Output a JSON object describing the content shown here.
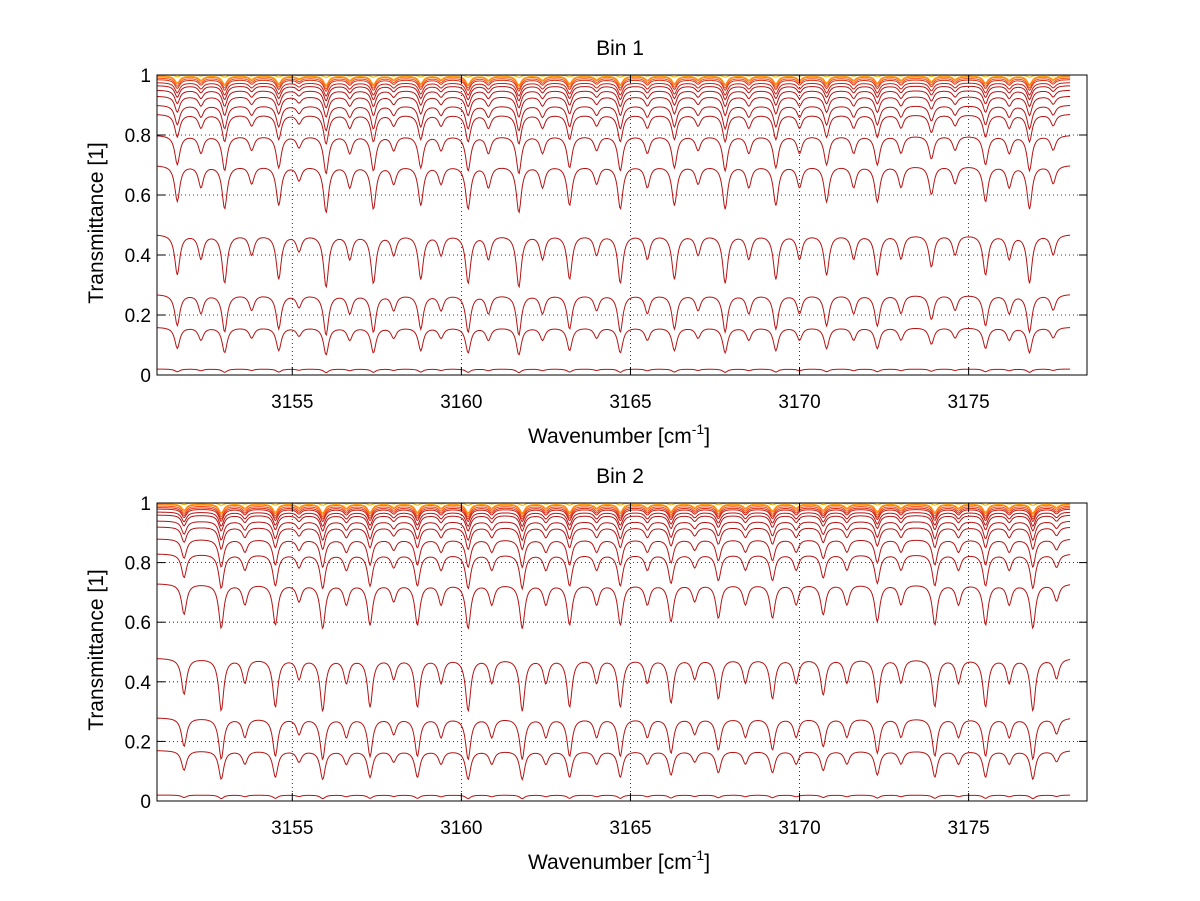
{
  "chart_data": [
    {
      "type": "line",
      "title": "Bin 1",
      "xlabel": "Wavenumber [cm",
      "xlabel_superscript": "-1",
      "xlabel_suffix": "]",
      "ylabel": "Transmittance [1]",
      "xlim": [
        3151,
        3178.5
      ],
      "ylim": [
        0,
        1
      ],
      "data_xrange": [
        3151,
        3178
      ],
      "xticks": [
        3155,
        3160,
        3165,
        3170,
        3175
      ],
      "xtick_labels": [
        "3155",
        "3160",
        "3165",
        "3170",
        "3175"
      ],
      "yticks": [
        0,
        0.2,
        0.4,
        0.6,
        0.8,
        1
      ],
      "ytick_labels": [
        "0",
        "0.2",
        "0.4",
        "0.6",
        "0.8",
        "1"
      ],
      "grid": "dotted",
      "series_colors": [
        "#b41414",
        "#c81e14",
        "#dc3214",
        "#f0501e",
        "#ff7814",
        "#ffa000",
        "#f0b400"
      ],
      "baselines": [
        0.02,
        0.16,
        0.27,
        0.47,
        0.7,
        0.8,
        0.87,
        0.9,
        0.93,
        0.95,
        0.965,
        0.975,
        0.985,
        0.99,
        0.995,
        0.998,
        1.0
      ],
      "absorption_lines": [
        {
          "x": 3151.6,
          "depth": 0.5
        },
        {
          "x": 3152.3,
          "depth": 0.3
        },
        {
          "x": 3153.0,
          "depth": 0.6
        },
        {
          "x": 3153.8,
          "depth": 0.25
        },
        {
          "x": 3154.6,
          "depth": 0.55
        },
        {
          "x": 3155.2,
          "depth": 0.2
        },
        {
          "x": 3156.0,
          "depth": 0.65
        },
        {
          "x": 3156.7,
          "depth": 0.3
        },
        {
          "x": 3157.4,
          "depth": 0.6
        },
        {
          "x": 3158.0,
          "depth": 0.25
        },
        {
          "x": 3158.8,
          "depth": 0.55
        },
        {
          "x": 3159.4,
          "depth": 0.25
        },
        {
          "x": 3160.2,
          "depth": 0.6
        },
        {
          "x": 3160.8,
          "depth": 0.3
        },
        {
          "x": 3161.7,
          "depth": 0.65
        },
        {
          "x": 3162.4,
          "depth": 0.3
        },
        {
          "x": 3163.2,
          "depth": 0.55
        },
        {
          "x": 3164.0,
          "depth": 0.25
        },
        {
          "x": 3164.7,
          "depth": 0.6
        },
        {
          "x": 3165.5,
          "depth": 0.3
        },
        {
          "x": 3166.3,
          "depth": 0.55
        },
        {
          "x": 3167.0,
          "depth": 0.25
        },
        {
          "x": 3167.8,
          "depth": 0.6
        },
        {
          "x": 3168.5,
          "depth": 0.3
        },
        {
          "x": 3169.3,
          "depth": 0.55
        },
        {
          "x": 3170.0,
          "depth": 0.3
        },
        {
          "x": 3170.8,
          "depth": 0.5
        },
        {
          "x": 3171.6,
          "depth": 0.3
        },
        {
          "x": 3172.3,
          "depth": 0.5
        },
        {
          "x": 3173.0,
          "depth": 0.3
        },
        {
          "x": 3173.9,
          "depth": 0.4
        },
        {
          "x": 3174.6,
          "depth": 0.25
        },
        {
          "x": 3175.5,
          "depth": 0.5
        },
        {
          "x": 3176.2,
          "depth": 0.3
        },
        {
          "x": 3176.8,
          "depth": 0.6
        },
        {
          "x": 3177.5,
          "depth": 0.25
        }
      ]
    },
    {
      "type": "line",
      "title": "Bin 2",
      "xlabel": "Wavenumber [cm",
      "xlabel_superscript": "-1",
      "xlabel_suffix": "]",
      "ylabel": "Transmittance [1]",
      "xlim": [
        3151,
        3178.5
      ],
      "ylim": [
        0,
        1
      ],
      "data_xrange": [
        3151,
        3178
      ],
      "xticks": [
        3155,
        3160,
        3165,
        3170,
        3175
      ],
      "xtick_labels": [
        "3155",
        "3160",
        "3165",
        "3170",
        "3175"
      ],
      "yticks": [
        0,
        0.2,
        0.4,
        0.6,
        0.8,
        1
      ],
      "ytick_labels": [
        "0",
        "0.2",
        "0.4",
        "0.6",
        "0.8",
        "1"
      ],
      "grid": "dotted",
      "series_colors": [
        "#b41414",
        "#c81e14",
        "#dc3214",
        "#f0501e",
        "#ff7814",
        "#ffa000",
        "#f0b400"
      ],
      "baselines": [
        0.02,
        0.17,
        0.28,
        0.48,
        0.73,
        0.83,
        0.88,
        0.92,
        0.94,
        0.96,
        0.97,
        0.98,
        0.985,
        0.99,
        0.995,
        0.998,
        1.0
      ],
      "absorption_lines": [
        {
          "x": 3151.8,
          "depth": 0.45
        },
        {
          "x": 3152.9,
          "depth": 0.65
        },
        {
          "x": 3153.6,
          "depth": 0.3
        },
        {
          "x": 3154.5,
          "depth": 0.6
        },
        {
          "x": 3155.2,
          "depth": 0.25
        },
        {
          "x": 3155.9,
          "depth": 0.65
        },
        {
          "x": 3156.6,
          "depth": 0.3
        },
        {
          "x": 3157.3,
          "depth": 0.6
        },
        {
          "x": 3158.0,
          "depth": 0.25
        },
        {
          "x": 3158.7,
          "depth": 0.6
        },
        {
          "x": 3159.4,
          "depth": 0.3
        },
        {
          "x": 3160.2,
          "depth": 0.65
        },
        {
          "x": 3160.9,
          "depth": 0.3
        },
        {
          "x": 3161.8,
          "depth": 0.65
        },
        {
          "x": 3162.5,
          "depth": 0.3
        },
        {
          "x": 3163.2,
          "depth": 0.6
        },
        {
          "x": 3164.0,
          "depth": 0.3
        },
        {
          "x": 3164.7,
          "depth": 0.6
        },
        {
          "x": 3165.5,
          "depth": 0.3
        },
        {
          "x": 3166.2,
          "depth": 0.55
        },
        {
          "x": 3166.9,
          "depth": 0.25
        },
        {
          "x": 3167.6,
          "depth": 0.5
        },
        {
          "x": 3168.4,
          "depth": 0.3
        },
        {
          "x": 3169.2,
          "depth": 0.5
        },
        {
          "x": 3169.9,
          "depth": 0.3
        },
        {
          "x": 3170.7,
          "depth": 0.45
        },
        {
          "x": 3171.4,
          "depth": 0.3
        },
        {
          "x": 3172.3,
          "depth": 0.55
        },
        {
          "x": 3173.0,
          "depth": 0.3
        },
        {
          "x": 3174.0,
          "depth": 0.6
        },
        {
          "x": 3174.7,
          "depth": 0.3
        },
        {
          "x": 3175.5,
          "depth": 0.6
        },
        {
          "x": 3176.2,
          "depth": 0.3
        },
        {
          "x": 3176.9,
          "depth": 0.65
        },
        {
          "x": 3177.6,
          "depth": 0.25
        }
      ]
    }
  ]
}
